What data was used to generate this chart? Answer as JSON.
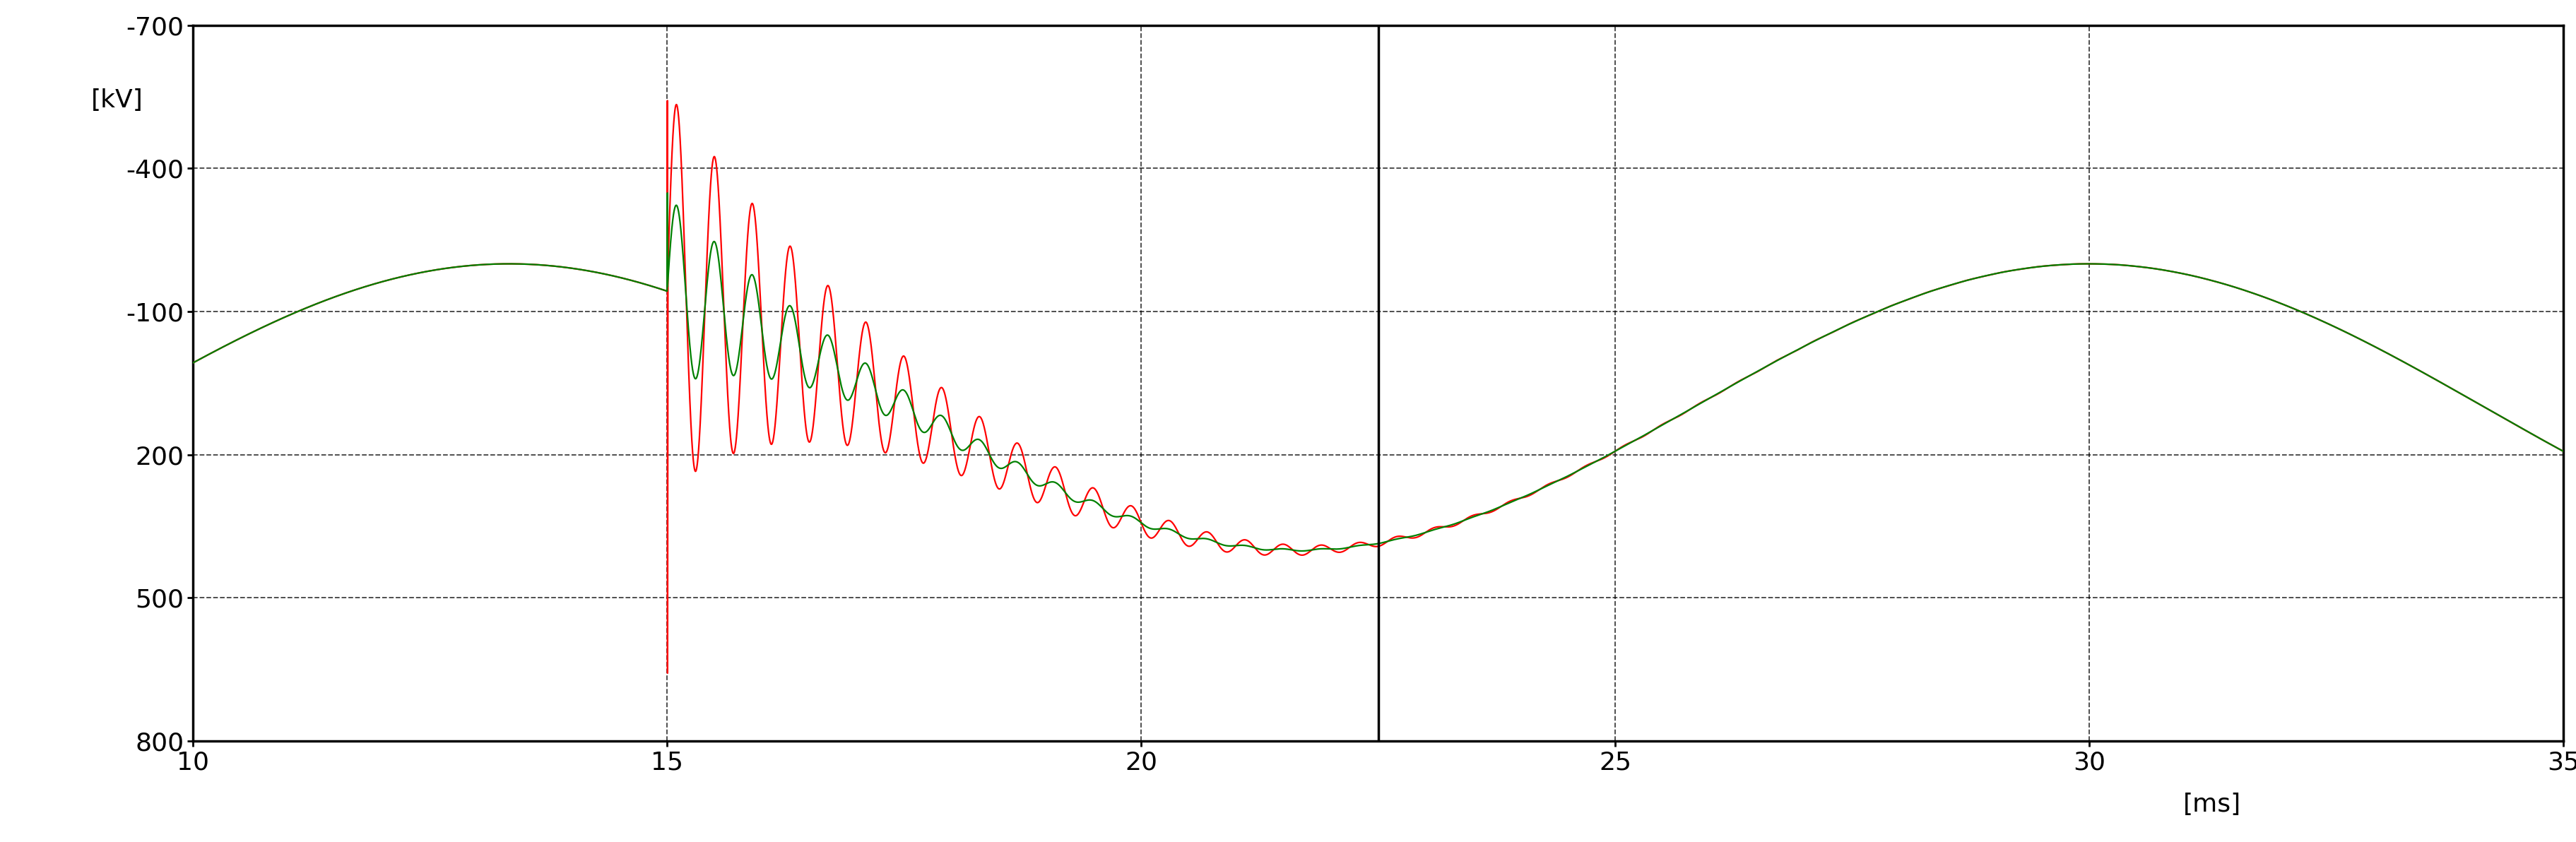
{
  "xlim": [
    10,
    35
  ],
  "ylim": [
    -700,
    800
  ],
  "xticks": [
    10,
    15,
    20,
    25,
    30,
    35
  ],
  "yticks": [
    -700,
    -400,
    -100,
    200,
    500,
    800
  ],
  "bg_color": "#ffffff",
  "line_red": "#ff0000",
  "line_green": "#008000",
  "linewidth_red": 1.6,
  "linewidth_green": 1.6,
  "solid_vline_x": 22.5,
  "tick_fontsize": 26,
  "spine_linewidth": 2.5,
  "grid_linewidth": 1.3,
  "vline_linewidth": 2.5
}
